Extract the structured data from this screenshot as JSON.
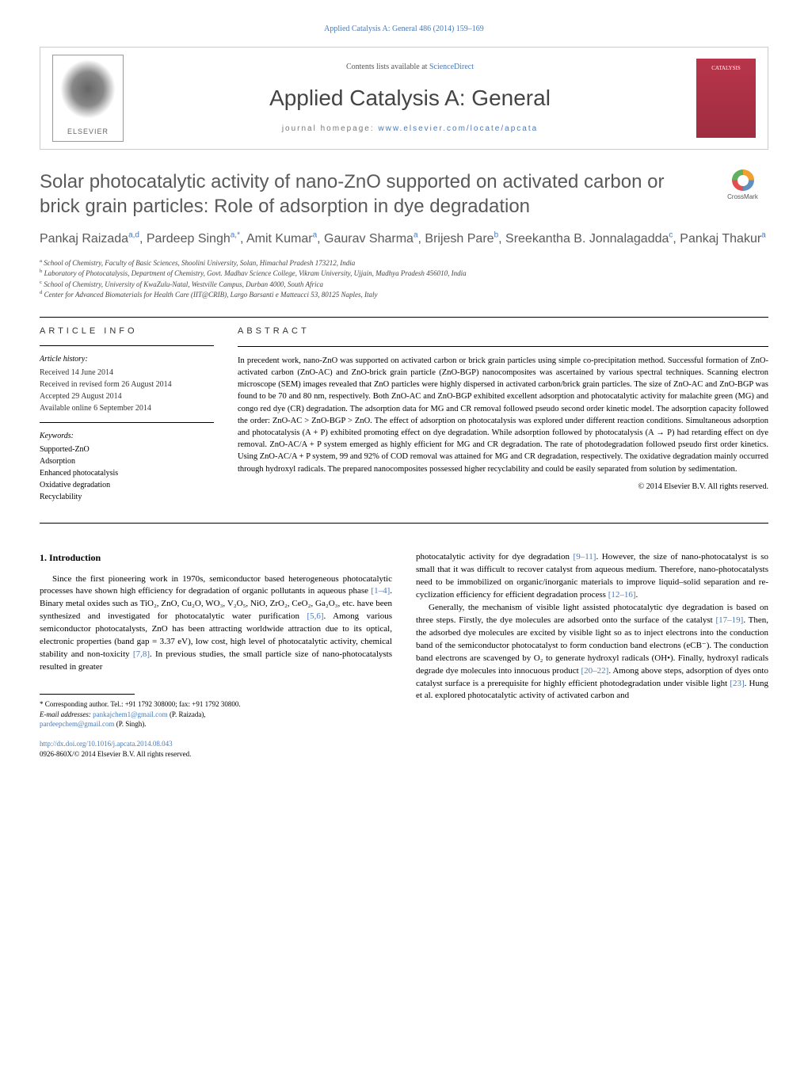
{
  "journal_ref": "Applied Catalysis A: General 486 (2014) 159–169",
  "header": {
    "elsevier_label": "ELSEVIER",
    "contents_prefix": "Contents lists available at ",
    "contents_link": "ScienceDirect",
    "journal_name": "Applied Catalysis A: General",
    "homepage_prefix": "journal homepage: ",
    "homepage_link": "www.elsevier.com/locate/apcata",
    "cover_text": "CATALYSIS"
  },
  "crossmark_label": "CrossMark",
  "title": "Solar photocatalytic activity of nano-ZnO supported on activated carbon or brick grain particles: Role of adsorption in dye degradation",
  "authors": [
    {
      "name": "Pankaj Raizada",
      "sup": "a,d"
    },
    {
      "name": "Pardeep Singh",
      "sup": "a,*"
    },
    {
      "name": "Amit Kumar",
      "sup": "a"
    },
    {
      "name": "Gaurav Sharma",
      "sup": "a"
    },
    {
      "name": "Brijesh Pare",
      "sup": "b"
    },
    {
      "name": "Sreekantha B. Jonnalagadda",
      "sup": "c"
    },
    {
      "name": "Pankaj Thakur",
      "sup": "a"
    }
  ],
  "affiliations": [
    {
      "sup": "a",
      "text": "School of Chemistry, Faculty of Basic Sciences, Shoolini University, Solan, Himachal Pradesh 173212, India"
    },
    {
      "sup": "b",
      "text": "Laboratory of Photocatalysis, Department of Chemistry, Govt. Madhav Science College, Vikram University, Ujjain, Madhya Pradesh 456010, India"
    },
    {
      "sup": "c",
      "text": "School of Chemistry, University of KwaZulu-Natal, Westville Campus, Durban 4000, South Africa"
    },
    {
      "sup": "d",
      "text": "Center for Advanced Biomaterials for Health Care (IIT@CRIB), Largo Barsanti e Matteucci 53, 80125 Naples, Italy"
    }
  ],
  "article_info": {
    "heading": "article info",
    "history_label": "Article history:",
    "history": [
      "Received 14 June 2014",
      "Received in revised form 26 August 2014",
      "Accepted 29 August 2014",
      "Available online 6 September 2014"
    ],
    "keywords_label": "Keywords:",
    "keywords": [
      "Supported-ZnO",
      "Adsorption",
      "Enhanced photocatalysis",
      "Oxidative degradation",
      "Recyclability"
    ]
  },
  "abstract": {
    "heading": "abstract",
    "text": "In precedent work, nano-ZnO was supported on activated carbon or brick grain particles using simple co-precipitation method. Successful formation of ZnO-activated carbon (ZnO-AC) and ZnO-brick grain particle (ZnO-BGP) nanocomposites was ascertained by various spectral techniques. Scanning electron microscope (SEM) images revealed that ZnO particles were highly dispersed in activated carbon/brick grain particles. The size of ZnO-AC and ZnO-BGP was found to be 70 and 80 nm, respectively. Both ZnO-AC and ZnO-BGP exhibited excellent adsorption and photocatalytic activity for malachite green (MG) and congo red dye (CR) degradation. The adsorption data for MG and CR removal followed pseudo second order kinetic model. The adsorption capacity followed the order: ZnO-AC > ZnO-BGP > ZnO. The effect of adsorption on photocatalysis was explored under different reaction conditions. Simultaneous adsorption and photocatalysis (A + P) exhibited promoting effect on dye degradation. While adsorption followed by photocatalysis (A → P) had retarding effect on dye removal. ZnO-AC/A + P system emerged as highly efficient for MG and CR degradation. The rate of photodegradation followed pseudo first order kinetics. Using ZnO-AC/A + P system, 99 and 92% of COD removal was attained for MG and CR degradation, respectively. The oxidative degradation mainly occurred through hydroxyl radicals. The prepared nanocomposites possessed higher recyclability and could be easily separated from solution by sedimentation.",
    "copyright": "© 2014 Elsevier B.V. All rights reserved."
  },
  "body": {
    "section_heading": "1. Introduction",
    "left_para": "Since the first pioneering work in 1970s, semiconductor based heterogeneous photocatalytic processes have shown high efficiency for degradation of organic pollutants in aqueous phase [1–4]. Binary metal oxides such as TiO₂, ZnO, Cu₂O, WO₃, V₂O₅, NiO, ZrO₂, CeO₂, Ga₂O₃, etc. have been synthesized and investigated for photocatalytic water purification [5,6]. Among various semiconductor photocatalysts, ZnO has been attracting worldwide attraction due to its optical, electronic properties (band gap = 3.37 eV), low cost, high level of photocatalytic activity, chemical stability and non-toxicity [7,8]. In previous studies, the small particle size of nano-photocatalysts resulted in greater",
    "right_para1": "photocatalytic activity for dye degradation [9–11]. However, the size of nano-photocatalyst is so small that it was difficult to recover catalyst from aqueous medium. Therefore, nano-photocatalysts need to be immobilized on organic/inorganic materials to improve liquid–solid separation and re-cyclization efficiency for efficient degradation process [12–16].",
    "right_para2": "Generally, the mechanism of visible light assisted photocatalytic dye degradation is based on three steps. Firstly, the dye molecules are adsorbed onto the surface of the catalyst [17–19]. Then, the adsorbed dye molecules are excited by visible light so as to inject electrons into the conduction band of the semiconductor photocatalyst to form conduction band electrons (eCB⁻). The conduction band electrons are scavenged by O₂ to generate hydroxyl radicals (OH•). Finally, hydroxyl radicals degrade dye molecules into innocuous product [20–22]. Among above steps, adsorption of dyes onto catalyst surface is a prerequisite for highly efficient photodegradation under visible light [23]. Hung et al. explored photocatalytic activity of activated carbon and"
  },
  "footnote": {
    "corresponding": "* Corresponding author. Tel.: +91 1792 308000; fax: +91 1792 30800.",
    "email_label": "E-mail addresses: ",
    "email1": "pankajchem1@gmail.com",
    "email1_name": " (P. Raizada),",
    "email2": "pardeepchem@gmail.com",
    "email2_name": " (P. Singh)."
  },
  "doi": {
    "url": "http://dx.doi.org/10.1016/j.apcata.2014.08.043",
    "issn_line": "0926-860X/© 2014 Elsevier B.V. All rights reserved."
  },
  "colors": {
    "link": "#4a7ab5",
    "heading_gray": "#5a5a5a",
    "text": "#000000"
  }
}
